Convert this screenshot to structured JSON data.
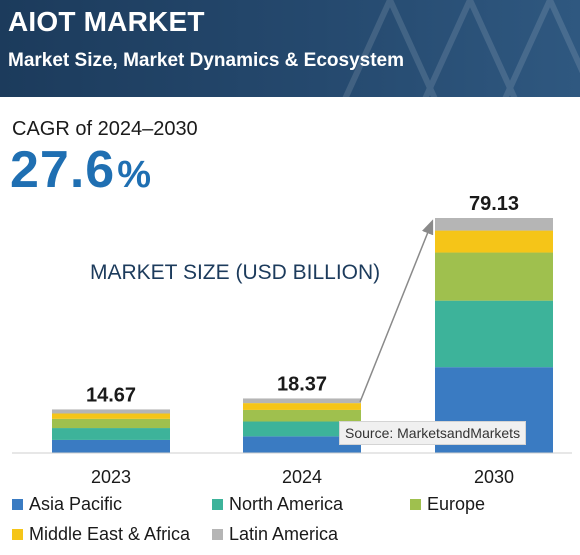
{
  "header": {
    "title": "AIOT MARKET",
    "subtitle": "Market Size, Market Dynamics & Ecosystem"
  },
  "cagr": {
    "label": "CAGR of 2024–2030",
    "value": "27.6",
    "unit": "%"
  },
  "source": "Source: MarketsandMarkets",
  "colors": {
    "banner": "#1c3b5c",
    "accent": "#1f6fb2",
    "asia_pacific": "#3a7bc2",
    "north_america": "#3db39a",
    "europe": "#9fc04e",
    "middle_east_africa": "#f5c518",
    "latin_america": "#b5b5b5"
  },
  "chart_data": {
    "type": "bar",
    "stacked": true,
    "title": "MARKET SIZE (USD BILLION)",
    "categories": [
      "2023",
      "2024",
      "2030"
    ],
    "totals": [
      "14.67",
      "18.37",
      "79.13"
    ],
    "total_values": [
      14.67,
      18.37,
      79.13
    ],
    "ylim": [
      0,
      79.13
    ],
    "grid": false,
    "legend_position": "bottom",
    "series": [
      {
        "name": "Asia Pacific",
        "color": "#3a7bc2",
        "values": [
          4.4,
          5.6,
          28.9
        ]
      },
      {
        "name": "North America",
        "color": "#3db39a",
        "values": [
          4.0,
          5.0,
          22.4
        ]
      },
      {
        "name": "Europe",
        "color": "#9fc04e",
        "values": [
          3.1,
          3.9,
          16.2
        ]
      },
      {
        "name": "Middle East & Africa",
        "color": "#f5c518",
        "values": [
          1.8,
          2.3,
          7.4
        ]
      },
      {
        "name": "Latin America",
        "color": "#b5b5b5",
        "values": [
          1.37,
          1.57,
          4.23
        ]
      }
    ]
  }
}
